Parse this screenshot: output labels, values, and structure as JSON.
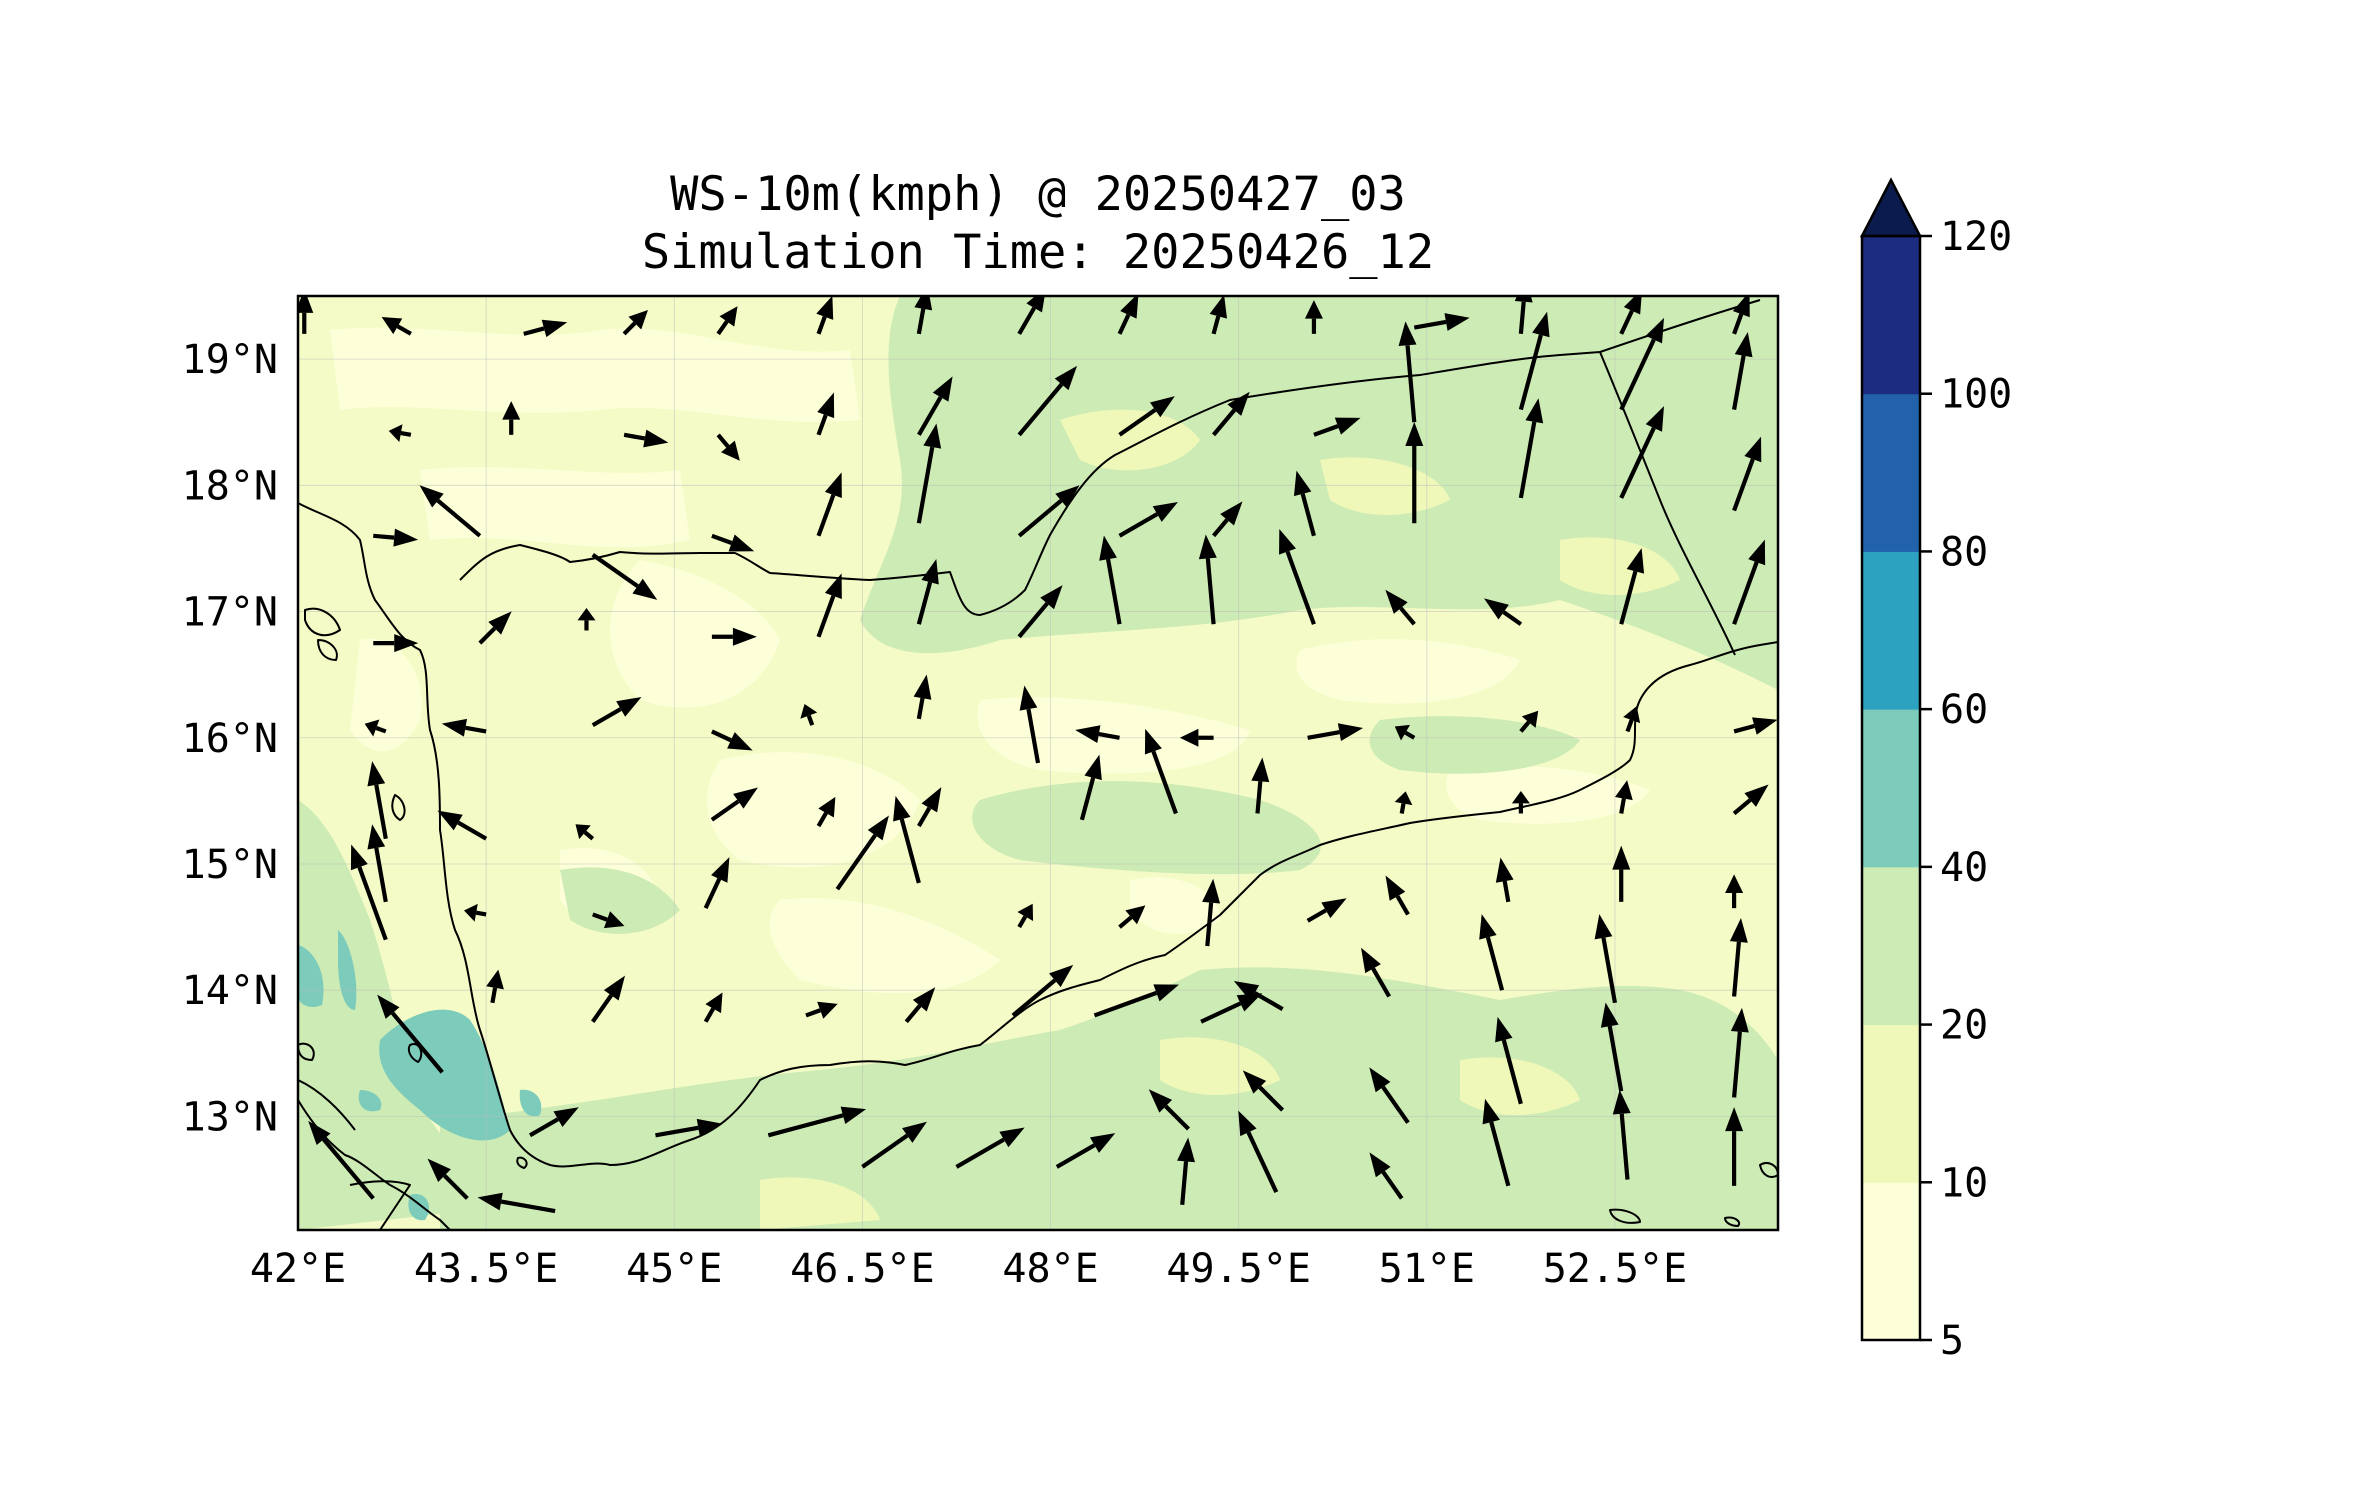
{
  "title": {
    "line1": "WS-10m(kmph) @ 20250427_03",
    "line2": "Simulation Time: 20250426_12"
  },
  "map": {
    "lon_range": [
      42.0,
      53.8
    ],
    "lat_range": [
      12.1,
      19.5
    ],
    "lon_ticks": [
      "42°E",
      "43.5°E",
      "45°E",
      "46.5°E",
      "48°E",
      "49.5°E",
      "51°E",
      "52.5°E"
    ],
    "lon_tick_values": [
      42.0,
      43.5,
      45.0,
      46.5,
      48.0,
      49.5,
      51.0,
      52.5
    ],
    "lat_ticks": [
      "19°N",
      "18°N",
      "17°N",
      "16°N",
      "15°N",
      "14°N",
      "13°N"
    ],
    "lat_tick_values": [
      19,
      18,
      17,
      16,
      15,
      14,
      13
    ],
    "gridlines": true,
    "background_color": "#f4fbc6"
  },
  "colorbar": {
    "levels": [
      "5",
      "10",
      "20",
      "40",
      "60",
      "80",
      "100",
      "120"
    ],
    "colors": [
      "#fdffd9",
      "#eff8b9",
      "#cdebb4",
      "#7ccbbb",
      "#2ca1c0",
      "#2162aa",
      "#1c2c80"
    ],
    "extend_color": "#0b1b4d",
    "extend": "max"
  },
  "wind_field": {
    "description_units": "kmph",
    "vectors": [
      [
        42.05,
        19.2,
        20,
        0.0
      ],
      [
        42.9,
        19.2,
        15,
        -60
      ],
      [
        43.8,
        19.2,
        20,
        75
      ],
      [
        44.6,
        19.2,
        15,
        45
      ],
      [
        45.35,
        19.2,
        15,
        35
      ],
      [
        46.15,
        19.2,
        18,
        20
      ],
      [
        46.95,
        19.2,
        22,
        10
      ],
      [
        47.75,
        19.2,
        24,
        30
      ],
      [
        48.55,
        19.2,
        20,
        25
      ],
      [
        49.3,
        19.2,
        18,
        15
      ],
      [
        50.1,
        19.2,
        15,
        0
      ],
      [
        50.9,
        19.25,
        25,
        80
      ],
      [
        51.75,
        19.2,
        25,
        5
      ],
      [
        52.55,
        19.2,
        22,
        25
      ],
      [
        53.45,
        19.2,
        20,
        20
      ],
      [
        42.9,
        18.4,
        10,
        -80
      ],
      [
        43.7,
        18.4,
        15,
        0
      ],
      [
        44.6,
        18.4,
        20,
        100
      ],
      [
        45.35,
        18.4,
        15,
        140
      ],
      [
        46.15,
        18.4,
        20,
        20
      ],
      [
        46.95,
        18.4,
        30,
        30
      ],
      [
        47.75,
        18.4,
        40,
        40
      ],
      [
        48.55,
        18.4,
        30,
        55
      ],
      [
        49.3,
        18.4,
        25,
        40
      ],
      [
        50.1,
        18.4,
        22,
        70
      ],
      [
        50.9,
        18.5,
        45,
        -5
      ],
      [
        51.75,
        18.6,
        45,
        15
      ],
      [
        52.55,
        18.6,
        45,
        25
      ],
      [
        53.45,
        18.6,
        35,
        10
      ],
      [
        42.6,
        17.6,
        20,
        95
      ],
      [
        43.45,
        17.6,
        35,
        -50
      ],
      [
        44.35,
        17.45,
        35,
        125
      ],
      [
        45.3,
        17.6,
        20,
        110
      ],
      [
        46.15,
        17.6,
        30,
        20
      ],
      [
        46.95,
        17.7,
        45,
        10
      ],
      [
        47.75,
        17.6,
        35,
        50
      ],
      [
        48.55,
        17.6,
        30,
        60
      ],
      [
        49.3,
        17.6,
        20,
        40
      ],
      [
        50.1,
        17.6,
        30,
        -15
      ],
      [
        50.9,
        17.7,
        45,
        0
      ],
      [
        51.75,
        17.9,
        45,
        10
      ],
      [
        52.55,
        17.9,
        45,
        25
      ],
      [
        53.45,
        17.8,
        35,
        20
      ],
      [
        42.6,
        16.75,
        20,
        90
      ],
      [
        43.45,
        16.75,
        20,
        45
      ],
      [
        44.3,
        16.85,
        10,
        0
      ],
      [
        45.3,
        16.8,
        20,
        90
      ],
      [
        46.15,
        16.8,
        30,
        20
      ],
      [
        46.95,
        16.9,
        30,
        15
      ],
      [
        47.75,
        16.8,
        30,
        40
      ],
      [
        48.55,
        16.9,
        40,
        -10
      ],
      [
        49.3,
        16.9,
        40,
        -5
      ],
      [
        50.1,
        16.9,
        45,
        -20
      ],
      [
        50.9,
        16.9,
        20,
        -40
      ],
      [
        51.75,
        16.9,
        20,
        -55
      ],
      [
        52.55,
        16.9,
        35,
        15
      ],
      [
        53.45,
        16.9,
        40,
        20
      ],
      [
        42.7,
        16.05,
        10,
        -70
      ],
      [
        43.5,
        16.05,
        20,
        -80
      ],
      [
        44.35,
        16.1,
        25,
        60
      ],
      [
        45.3,
        16.05,
        20,
        115
      ],
      [
        46.1,
        16.1,
        10,
        -20
      ],
      [
        46.95,
        16.15,
        20,
        10
      ],
      [
        47.9,
        15.8,
        35,
        -10
      ],
      [
        48.55,
        16.0,
        20,
        -80
      ],
      [
        49.3,
        16.0,
        15,
        -90
      ],
      [
        50.05,
        16.0,
        25,
        80
      ],
      [
        50.9,
        16.0,
        10,
        -60
      ],
      [
        51.75,
        16.05,
        12,
        40
      ],
      [
        52.6,
        16.05,
        12,
        20
      ],
      [
        53.45,
        16.05,
        20,
        75
      ],
      [
        42.7,
        15.2,
        35,
        -10
      ],
      [
        43.5,
        15.2,
        25,
        -60
      ],
      [
        44.35,
        15.2,
        10,
        -50
      ],
      [
        45.3,
        15.35,
        25,
        55
      ],
      [
        46.15,
        15.3,
        15,
        30
      ],
      [
        46.95,
        15.3,
        20,
        30
      ],
      [
        48.25,
        15.35,
        30,
        15
      ],
      [
        49.0,
        15.4,
        40,
        -20
      ],
      [
        49.65,
        15.4,
        25,
        5
      ],
      [
        50.8,
        15.4,
        10,
        10
      ],
      [
        51.75,
        15.4,
        10,
        0
      ],
      [
        52.55,
        15.4,
        15,
        10
      ],
      [
        53.45,
        15.4,
        20,
        50
      ],
      [
        42.7,
        14.7,
        35,
        -10
      ],
      [
        43.5,
        14.6,
        10,
        -80
      ],
      [
        44.35,
        14.6,
        15,
        110
      ],
      [
        45.25,
        14.65,
        25,
        25
      ],
      [
        46.3,
        14.8,
        40,
        35
      ],
      [
        46.95,
        14.85,
        40,
        -15
      ],
      [
        47.75,
        14.5,
        12,
        30
      ],
      [
        48.55,
        14.5,
        15,
        50
      ],
      [
        49.25,
        14.35,
        30,
        5
      ],
      [
        50.05,
        14.55,
        20,
        60
      ],
      [
        50.85,
        14.6,
        20,
        -30
      ],
      [
        51.65,
        14.7,
        20,
        -10
      ],
      [
        52.55,
        14.7,
        25,
        0
      ],
      [
        53.45,
        14.65,
        15,
        0
      ],
      [
        42.7,
        14.4,
        45,
        -20
      ],
      [
        43.55,
        13.9,
        15,
        10
      ],
      [
        44.35,
        13.75,
        25,
        35
      ],
      [
        45.25,
        13.75,
        15,
        30
      ],
      [
        46.05,
        13.8,
        15,
        70
      ],
      [
        46.85,
        13.75,
        20,
        40
      ],
      [
        47.7,
        13.8,
        35,
        50
      ],
      [
        48.35,
        13.8,
        40,
        70
      ],
      [
        49.2,
        13.75,
        30,
        65
      ],
      [
        49.85,
        13.85,
        25,
        -60
      ],
      [
        50.7,
        13.95,
        25,
        -30
      ],
      [
        51.6,
        14.0,
        35,
        -15
      ],
      [
        52.5,
        13.9,
        40,
        -10
      ],
      [
        53.45,
        13.95,
        35,
        5
      ],
      [
        43.15,
        13.35,
        45,
        -40
      ],
      [
        43.85,
        12.85,
        25,
        60
      ],
      [
        44.85,
        12.85,
        30,
        80
      ],
      [
        45.75,
        12.85,
        45,
        75
      ],
      [
        46.5,
        12.6,
        35,
        55
      ],
      [
        47.25,
        12.6,
        35,
        60
      ],
      [
        48.05,
        12.6,
        30,
        60
      ],
      [
        49.1,
        12.9,
        25,
        -45
      ],
      [
        49.85,
        13.05,
        25,
        -45
      ],
      [
        50.85,
        12.95,
        30,
        -35
      ],
      [
        51.75,
        13.1,
        40,
        -15
      ],
      [
        52.55,
        13.2,
        40,
        -10
      ],
      [
        53.45,
        13.15,
        40,
        5
      ],
      [
        42.6,
        12.35,
        45,
        -40
      ],
      [
        43.35,
        12.35,
        25,
        -45
      ],
      [
        44.05,
        12.25,
        35,
        -80
      ],
      [
        49.05,
        12.3,
        30,
        5
      ],
      [
        49.8,
        12.4,
        40,
        -25
      ],
      [
        50.8,
        12.35,
        25,
        -35
      ],
      [
        51.65,
        12.45,
        40,
        -15
      ],
      [
        52.6,
        12.5,
        40,
        -5
      ],
      [
        53.45,
        12.45,
        35,
        0
      ]
    ]
  },
  "colors": {
    "coastline": "#000000",
    "frame": "#000000",
    "arrow": "#000000",
    "grid": "#bdbdbd"
  }
}
